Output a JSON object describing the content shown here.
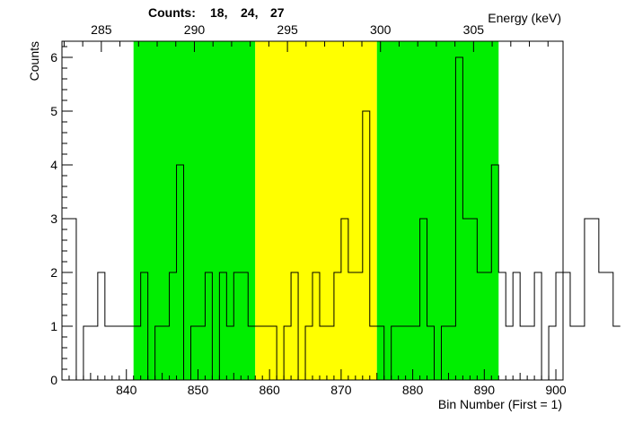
{
  "chart_data": {
    "type": "histogram",
    "title": "",
    "xlabel": "Bin Number (First = 1)",
    "ylabel": "Counts",
    "x2label": "Energy (keV)",
    "counts_label": "Counts:",
    "counts": [
      "18,",
      "24,",
      "27"
    ],
    "xlim": [
      831,
      901
    ],
    "ylim": [
      0,
      6.3
    ],
    "x_ticks": [
      840,
      850,
      860,
      870,
      880,
      890,
      900
    ],
    "y_ticks": [
      0,
      1,
      2,
      3,
      4,
      5,
      6
    ],
    "energy_ticks": [
      {
        "bin": 836.5,
        "label": "285"
      },
      {
        "bin": 849.5,
        "label": "290"
      },
      {
        "bin": 862.5,
        "label": "295"
      },
      {
        "bin": 875.5,
        "label": "300"
      },
      {
        "bin": 888.5,
        "label": "305"
      }
    ],
    "regions": [
      {
        "from": 841,
        "to": 858,
        "color": "#00ee00"
      },
      {
        "from": 858,
        "to": 875,
        "color": "#ffff00"
      },
      {
        "from": 875,
        "to": 892,
        "color": "#00ee00"
      }
    ],
    "bin_start": 832,
    "values": [
      3,
      0,
      1,
      1,
      2,
      1,
      1,
      1,
      1,
      1,
      2,
      0,
      1,
      1,
      2,
      4,
      0,
      1,
      1,
      2,
      0,
      2,
      1,
      2,
      2,
      1,
      1,
      1,
      1,
      0,
      1,
      2,
      0,
      1,
      2,
      1,
      1,
      2,
      3,
      2,
      2,
      5,
      1,
      1,
      0,
      1,
      1,
      1,
      1,
      3,
      1,
      0,
      1,
      1,
      6,
      3,
      3,
      2,
      2,
      4,
      2,
      1,
      2,
      1,
      1,
      2,
      0,
      1,
      2,
      2,
      1,
      1,
      3,
      3,
      2,
      2,
      1
    ]
  }
}
